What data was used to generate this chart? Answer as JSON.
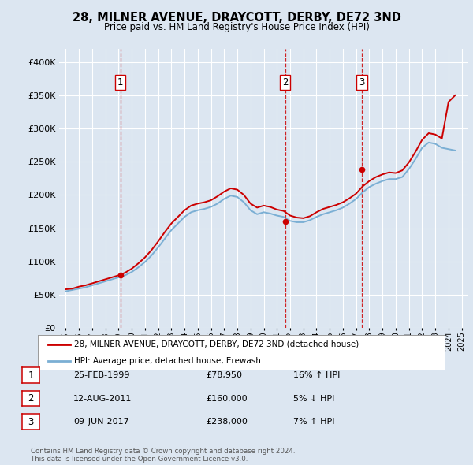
{
  "title": "28, MILNER AVENUE, DRAYCOTT, DERBY, DE72 3ND",
  "subtitle": "Price paid vs. HM Land Registry's House Price Index (HPI)",
  "legend_property": "28, MILNER AVENUE, DRAYCOTT, DERBY, DE72 3ND (detached house)",
  "legend_hpi": "HPI: Average price, detached house, Erewash",
  "footnote": "Contains HM Land Registry data © Crown copyright and database right 2024.\nThis data is licensed under the Open Government Licence v3.0.",
  "sales": [
    {
      "label": "1",
      "date": "25-FEB-1999",
      "price": 78950,
      "hpi_rel": "16% ↑ HPI",
      "x": 1999.13
    },
    {
      "label": "2",
      "date": "12-AUG-2011",
      "price": 160000,
      "hpi_rel": "5% ↓ HPI",
      "x": 2011.62
    },
    {
      "label": "3",
      "date": "09-JUN-2017",
      "price": 238000,
      "hpi_rel": "7% ↑ HPI",
      "x": 2017.44
    }
  ],
  "property_color": "#cc0000",
  "hpi_color": "#7bafd4",
  "background_color": "#dce6f1",
  "plot_bg_color": "#dce6f1",
  "grid_color": "#ffffff",
  "vline_color": "#cc0000",
  "ylim": [
    0,
    420000
  ],
  "xlim_start": 1994.5,
  "xlim_end": 2025.5,
  "yticks": [
    0,
    50000,
    100000,
    150000,
    200000,
    250000,
    300000,
    350000,
    400000
  ],
  "hpi_years": [
    1995,
    1995.5,
    1996,
    1996.5,
    1997,
    1997.5,
    1998,
    1998.5,
    1999,
    1999.5,
    2000,
    2000.5,
    2001,
    2001.5,
    2002,
    2002.5,
    2003,
    2003.5,
    2004,
    2004.5,
    2005,
    2005.5,
    2006,
    2006.5,
    2007,
    2007.5,
    2008,
    2008.5,
    2009,
    2009.5,
    2010,
    2010.5,
    2011,
    2011.5,
    2012,
    2012.5,
    2013,
    2013.5,
    2014,
    2014.5,
    2015,
    2015.5,
    2016,
    2016.5,
    2017,
    2017.5,
    2018,
    2018.5,
    2019,
    2019.5,
    2020,
    2020.5,
    2021,
    2021.5,
    2022,
    2022.5,
    2023,
    2023.5,
    2024,
    2024.5
  ],
  "hpi_values": [
    55000,
    57000,
    59000,
    61000,
    64000,
    67000,
    70000,
    73000,
    76000,
    79000,
    84000,
    91000,
    99000,
    109000,
    121000,
    134000,
    147000,
    157000,
    167000,
    174000,
    177000,
    179000,
    182000,
    187000,
    194000,
    199000,
    197000,
    189000,
    177000,
    171000,
    174000,
    172000,
    169000,
    167000,
    161000,
    159000,
    159000,
    162000,
    167000,
    171000,
    174000,
    177000,
    181000,
    187000,
    194000,
    204000,
    212000,
    217000,
    221000,
    224000,
    224000,
    227000,
    239000,
    254000,
    271000,
    279000,
    277000,
    271000,
    269000,
    267000
  ],
  "prop_years": [
    1995,
    1995.5,
    1996,
    1996.5,
    1997,
    1997.5,
    1998,
    1998.5,
    1999,
    1999.5,
    2000,
    2000.5,
    2001,
    2001.5,
    2002,
    2002.5,
    2003,
    2003.5,
    2004,
    2004.5,
    2005,
    2005.5,
    2006,
    2006.5,
    2007,
    2007.5,
    2008,
    2008.5,
    2009,
    2009.5,
    2010,
    2010.5,
    2011,
    2011.5,
    2012,
    2012.5,
    2013,
    2013.5,
    2014,
    2014.5,
    2015,
    2015.5,
    2016,
    2016.5,
    2017,
    2017.5,
    2018,
    2018.5,
    2019,
    2019.5,
    2020,
    2020.5,
    2021,
    2021.5,
    2022,
    2022.5,
    2023,
    2023.5,
    2024,
    2024.5
  ],
  "prop_values": [
    58000,
    59000,
    62000,
    64000,
    67000,
    70000,
    73000,
    76000,
    79000,
    83000,
    89000,
    97000,
    106000,
    117000,
    130000,
    144000,
    157000,
    167000,
    177000,
    184000,
    187000,
    189000,
    192000,
    198000,
    205000,
    210000,
    208000,
    200000,
    187000,
    181000,
    184000,
    182000,
    178000,
    176000,
    169000,
    166000,
    165000,
    168000,
    174000,
    179000,
    182000,
    185000,
    189000,
    195000,
    202000,
    213000,
    221000,
    227000,
    231000,
    234000,
    233000,
    237000,
    249000,
    265000,
    283000,
    293000,
    291000,
    285000,
    340000,
    350000
  ]
}
